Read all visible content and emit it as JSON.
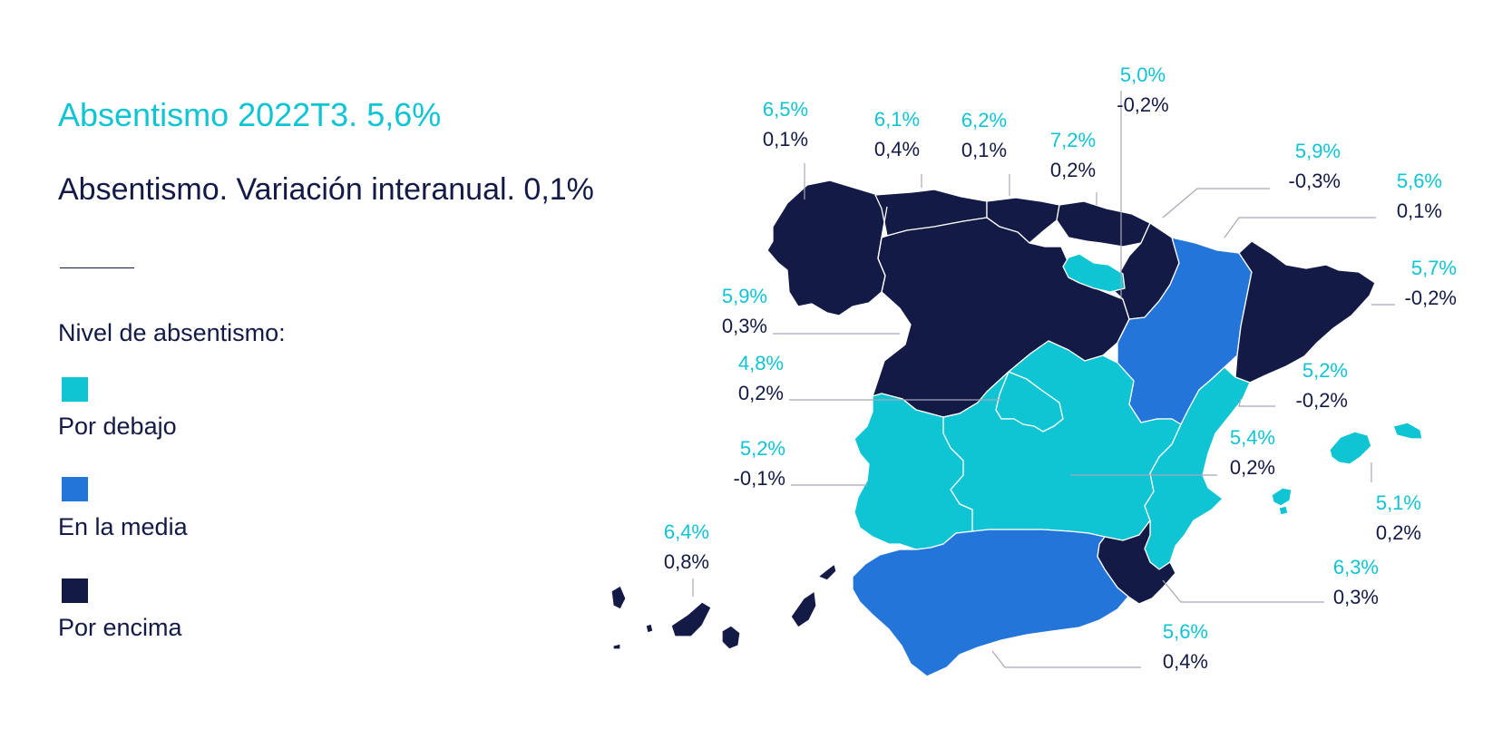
{
  "title": "Absentismo 2022T3. 5,6%",
  "subtitle": "Absentismo. Variación interanual. 0,1%",
  "legend": {
    "title": "Nivel de absentismo:",
    "items": [
      {
        "label": "Por debajo",
        "color": "#0fc4d3"
      },
      {
        "label": "En la media",
        "color": "#2475da"
      },
      {
        "label": "Por encima",
        "color": "#131a45"
      }
    ]
  },
  "colors": {
    "below": "#0fc4d3",
    "average": "#2475da",
    "above": "#131a45"
  },
  "regions": [
    {
      "id": "galicia",
      "value": "6,5%",
      "variation": "0,1%",
      "level": "above"
    },
    {
      "id": "asturias",
      "value": "6,1%",
      "variation": "0,4%",
      "level": "above"
    },
    {
      "id": "cantabria",
      "value": "6,2%",
      "variation": "0,1%",
      "level": "above"
    },
    {
      "id": "pais-vasco",
      "value": "7,2%",
      "variation": "0,2%",
      "level": "above"
    },
    {
      "id": "la-rioja",
      "value": "5,0%",
      "variation": "-0,2%",
      "level": "below"
    },
    {
      "id": "navarra",
      "value": "5,9%",
      "variation": "-0,3%",
      "level": "above"
    },
    {
      "id": "aragon",
      "value": "5,6%",
      "variation": "0,1%",
      "level": "average"
    },
    {
      "id": "cataluna",
      "value": "5,7%",
      "variation": "-0,2%",
      "level": "above"
    },
    {
      "id": "castilla-y-leon",
      "value": "5,9%",
      "variation": "0,3%",
      "level": "above"
    },
    {
      "id": "madrid",
      "value": "4,8%",
      "variation": "0,2%",
      "level": "below"
    },
    {
      "id": "comunitat-valenciana",
      "value": "5,2%",
      "variation": "-0,2%",
      "level": "below"
    },
    {
      "id": "extremadura",
      "value": "5,2%",
      "variation": "-0,1%",
      "level": "below"
    },
    {
      "id": "castilla-la-mancha",
      "value": "5,4%",
      "variation": "0,2%",
      "level": "below"
    },
    {
      "id": "illes-balears",
      "value": "5,1%",
      "variation": "0,2%",
      "level": "below"
    },
    {
      "id": "canarias",
      "value": "6,4%",
      "variation": "0,8%",
      "level": "above"
    },
    {
      "id": "murcia",
      "value": "6,3%",
      "variation": "0,3%",
      "level": "above"
    },
    {
      "id": "andalucia",
      "value": "5,6%",
      "variation": "0,4%",
      "level": "average"
    }
  ]
}
